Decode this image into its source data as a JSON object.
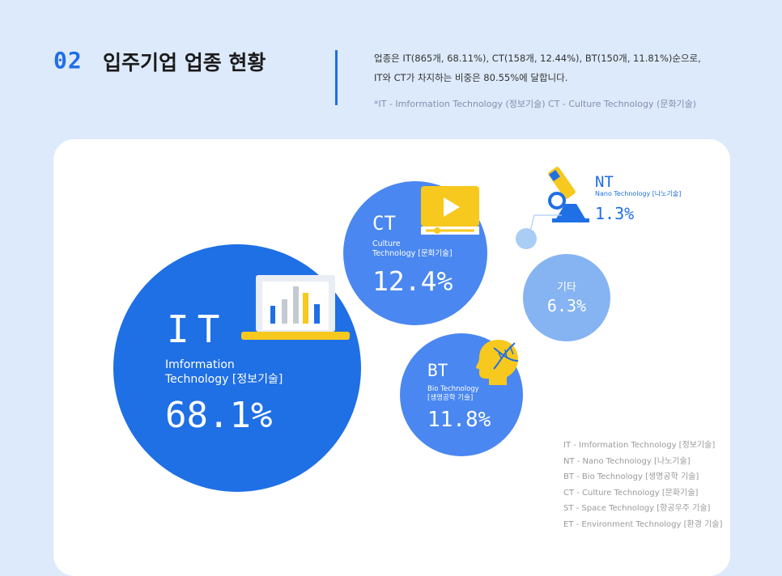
{
  "header": {
    "number": "02",
    "title": "입주기업 업종 현황",
    "desc_line1": "업종은 IT(865개, 68.11%), CT(158개, 12.44%), BT(150개, 11.81%)순으로,",
    "desc_line2": "IT와 CT가 차지하는 비중은 80.55%에 달합니다.",
    "note": "*IT - Imformation Technology (정보기술) CT - Culture Technology (문화기술)"
  },
  "colors": {
    "primary_blue": "#1f6fe5",
    "mid_blue": "#4a87f0",
    "light_blue": "#86b3f2",
    "pale_blue": "#a9cdf5",
    "accent_yellow": "#f7c81e",
    "background": "#ddeafb"
  },
  "chart_data": {
    "type": "bubble",
    "series": [
      {
        "code": "IT",
        "name_en": "Imformation\nTechnology [정보기술]",
        "value": 68.1,
        "label": "68.1%",
        "icon": "laptop-chart-icon"
      },
      {
        "code": "CT",
        "name_en": "Culture\nTechnology [문화기술]",
        "value": 12.4,
        "label": "12.4%",
        "icon": "video-player-icon"
      },
      {
        "code": "BT",
        "name_en": "Bio Technology\n[생명공학 기술]",
        "value": 11.8,
        "label": "11.8%",
        "icon": "dna-head-icon"
      },
      {
        "code": "기타",
        "name_en": "",
        "value": 6.3,
        "label": "6.3%",
        "icon": ""
      },
      {
        "code": "NT",
        "name_en": "Nano Technology [나노기술]",
        "value": 1.3,
        "label": "1.3%",
        "icon": "microscope-icon"
      }
    ]
  },
  "legend": [
    "IT - Imformation Technology [정보기술]",
    "NT - Nano Technology [나노기술]",
    "BT - Bio Technology [생명공학 기술]",
    "CT - Culture Technology [문화기술]",
    "ST - Space Technology [항공우주 기술]",
    "ET - Environment Technology [환경 기술]"
  ]
}
